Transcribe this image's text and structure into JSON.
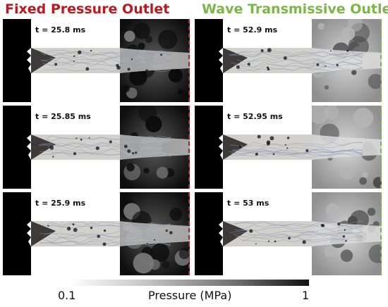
{
  "titles": {
    "left": "Fixed Pressure Outlet",
    "right": "Wave Transmissive Outlet"
  },
  "colors": {
    "left_title": "#c0161d",
    "right_title": "#7ab648",
    "left_divider": "#c0161d",
    "right_divider": "#7ab648"
  },
  "panels": {
    "left": [
      {
        "time": "t = 25.8 ms",
        "outlet_field": "dark"
      },
      {
        "time": "t = 25.85 ms",
        "outlet_field": "dark"
      },
      {
        "time": "t = 25.9 ms",
        "outlet_field": "dark"
      }
    ],
    "right": [
      {
        "time": "t = 52.9 ms",
        "outlet_field": "light"
      },
      {
        "time": "t = 52.95 ms",
        "outlet_field": "light"
      },
      {
        "time": "t = 53 ms",
        "outlet_field": "light"
      }
    ]
  },
  "colorbar": {
    "min_label": "0.1",
    "max_label": "1",
    "title": "Pressure (MPa)",
    "gradient": [
      "#ffffff",
      "#111111"
    ]
  }
}
